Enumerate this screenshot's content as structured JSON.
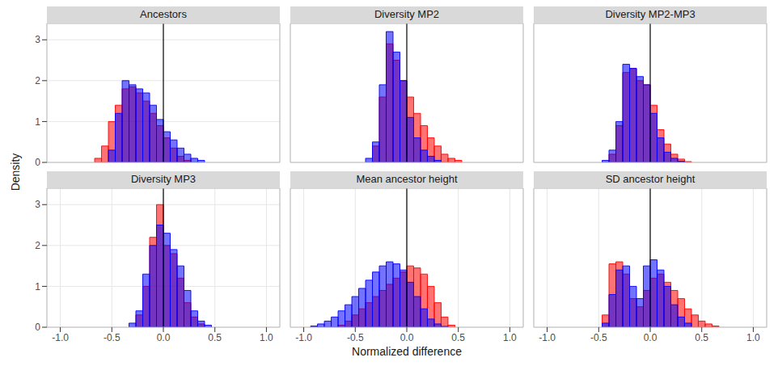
{
  "xlabel": "Normalized difference",
  "ylabel": "Density",
  "chart_data": [
    {
      "type": "histogram",
      "title": "Ancestors",
      "tick_labels": "y",
      "grid": true,
      "vline": 0,
      "xlim": [
        -1.13,
        1.13
      ],
      "ylim": [
        0,
        3.4
      ],
      "xticks": [
        {
          "value": -1,
          "label": "-1.0"
        },
        -0.5,
        {
          "value": 0,
          "label": "0.0"
        },
        0.5,
        {
          "value": 1,
          "label": "1.0"
        }
      ],
      "yticks": [
        0,
        1,
        2,
        3
      ],
      "bins": [
        -1,
        -0.9333,
        -0.8667,
        -0.8,
        -0.7333,
        -0.6667,
        -0.6,
        -0.5333,
        -0.4667,
        -0.4,
        -0.3333,
        -0.2667,
        -0.2,
        -0.1333,
        -0.0667,
        0,
        0.0667,
        0.1333,
        0.2,
        0.2667,
        0.3333,
        0.4,
        0.4667,
        0.5333,
        0.6,
        0.6667,
        0.7333,
        0.8,
        0.8667,
        0.9333,
        1
      ],
      "series": [
        {
          "color": "#ff0000",
          "values": [
            0,
            0,
            0,
            0,
            0,
            0.1,
            0.4,
            1.0,
            1.4,
            1.8,
            1.85,
            1.7,
            1.5,
            1.2,
            0.9,
            0.6,
            0.35,
            0.15,
            0.05,
            0,
            0,
            0,
            0,
            0,
            0,
            0,
            0,
            0,
            0,
            0
          ]
        },
        {
          "color": "#0000ff",
          "values": [
            0,
            0,
            0,
            0,
            0,
            0,
            0,
            0.3,
            1.2,
            2.0,
            1.9,
            1.8,
            1.7,
            1.4,
            1.05,
            0.75,
            0.55,
            0.35,
            0.2,
            0.1,
            0.05,
            0,
            0,
            0,
            0,
            0,
            0,
            0,
            0,
            0
          ]
        }
      ]
    },
    {
      "type": "histogram",
      "title": "Diversity MP2",
      "tick_labels": false,
      "grid": true,
      "vline": 0,
      "xlim": [
        -1.13,
        1.13
      ],
      "ylim": [
        0,
        3.4
      ],
      "xticks": [
        {
          "value": -1,
          "label": "-1.0"
        },
        -0.5,
        {
          "value": 0,
          "label": "0.0"
        },
        0.5,
        {
          "value": 1,
          "label": "1.0"
        }
      ],
      "yticks": [
        0,
        1,
        2,
        3
      ],
      "bins": [
        -1,
        -0.9333,
        -0.8667,
        -0.8,
        -0.7333,
        -0.6667,
        -0.6,
        -0.5333,
        -0.4667,
        -0.4,
        -0.3333,
        -0.2667,
        -0.2,
        -0.1333,
        -0.0667,
        0,
        0.0667,
        0.1333,
        0.2,
        0.2667,
        0.3333,
        0.4,
        0.4667,
        0.5333,
        0.6,
        0.6667,
        0.7333,
        0.8,
        0.8667,
        0.9333,
        1
      ],
      "series": [
        {
          "color": "#ff0000",
          "values": [
            0,
            0,
            0,
            0,
            0,
            0,
            0,
            0,
            0,
            0,
            0.4,
            1.6,
            2.9,
            2.5,
            2.0,
            1.6,
            1.2,
            0.9,
            0.6,
            0.4,
            0.2,
            0.1,
            0.05,
            0,
            0,
            0,
            0,
            0,
            0,
            0
          ]
        },
        {
          "color": "#0000ff",
          "values": [
            0,
            0,
            0,
            0,
            0,
            0,
            0,
            0,
            0,
            0.1,
            0.5,
            1.9,
            3.2,
            2.7,
            2.0,
            1.1,
            0.6,
            0.3,
            0.15,
            0.05,
            0,
            0,
            0,
            0,
            0,
            0,
            0,
            0,
            0,
            0
          ]
        }
      ]
    },
    {
      "type": "histogram",
      "title": "Diversity MP2-MP3",
      "tick_labels": false,
      "grid": true,
      "vline": 0,
      "xlim": [
        -1.13,
        1.13
      ],
      "ylim": [
        0,
        3.4
      ],
      "xticks": [
        {
          "value": -1,
          "label": "-1.0"
        },
        -0.5,
        {
          "value": 0,
          "label": "0.0"
        },
        0.5,
        {
          "value": 1,
          "label": "1.0"
        }
      ],
      "yticks": [
        0,
        1,
        2,
        3
      ],
      "bins": [
        -1,
        -0.9333,
        -0.8667,
        -0.8,
        -0.7333,
        -0.6667,
        -0.6,
        -0.5333,
        -0.4667,
        -0.4,
        -0.3333,
        -0.2667,
        -0.2,
        -0.1333,
        -0.0667,
        0,
        0.0667,
        0.1333,
        0.2,
        0.2667,
        0.3333,
        0.4,
        0.4667,
        0.5333,
        0.6,
        0.6667,
        0.7333,
        0.8,
        0.8667,
        0.9333,
        1
      ],
      "series": [
        {
          "color": "#ff0000",
          "values": [
            0,
            0,
            0,
            0,
            0,
            0,
            0,
            0,
            0,
            0.2,
            0.9,
            2.2,
            2.3,
            2.0,
            1.9,
            1.4,
            0.8,
            0.45,
            0.2,
            0.08,
            0.02,
            0,
            0,
            0,
            0,
            0,
            0,
            0,
            0,
            0
          ]
        },
        {
          "color": "#0000ff",
          "values": [
            0,
            0,
            0,
            0,
            0,
            0,
            0,
            0,
            0.05,
            0.3,
            1.0,
            2.4,
            2.3,
            2.1,
            1.9,
            1.2,
            0.6,
            0.25,
            0.1,
            0.03,
            0,
            0,
            0,
            0,
            0,
            0,
            0,
            0,
            0,
            0
          ]
        }
      ]
    },
    {
      "type": "histogram",
      "title": "Diversity MP3",
      "grid": true,
      "vline": 0,
      "xlim": [
        -1.13,
        1.13
      ],
      "ylim": [
        0,
        3.4
      ],
      "xticks": [
        {
          "value": -1,
          "label": "-1.0"
        },
        -0.5,
        {
          "value": 0,
          "label": "0.0"
        },
        0.5,
        {
          "value": 1,
          "label": "1.0"
        }
      ],
      "yticks": [
        0,
        1,
        2,
        3
      ],
      "bins": [
        -1,
        -0.9333,
        -0.8667,
        -0.8,
        -0.7333,
        -0.6667,
        -0.6,
        -0.5333,
        -0.4667,
        -0.4,
        -0.3333,
        -0.2667,
        -0.2,
        -0.1333,
        -0.0667,
        0,
        0.0667,
        0.1333,
        0.2,
        0.2667,
        0.3333,
        0.4,
        0.4667,
        0.5333,
        0.6,
        0.6667,
        0.7333,
        0.8,
        0.8667,
        0.9333,
        1
      ],
      "series": [
        {
          "color": "#ff0000",
          "values": [
            0,
            0,
            0,
            0,
            0,
            0,
            0,
            0,
            0,
            0,
            0,
            0.3,
            1.0,
            2.2,
            3.0,
            2.0,
            1.8,
            1.2,
            0.6,
            0.25,
            0.08,
            0,
            0,
            0,
            0,
            0,
            0,
            0,
            0,
            0
          ]
        },
        {
          "color": "#0000ff",
          "values": [
            0,
            0,
            0,
            0,
            0,
            0,
            0,
            0,
            0,
            0,
            0.1,
            0.4,
            1.3,
            2.0,
            2.5,
            2.3,
            1.9,
            1.5,
            0.9,
            0.4,
            0.15,
            0.05,
            0,
            0,
            0,
            0,
            0,
            0,
            0,
            0
          ]
        }
      ]
    },
    {
      "type": "histogram",
      "title": "Mean ancestor height",
      "tick_labels": "x",
      "grid": true,
      "vline": 0,
      "xlim": [
        -1.13,
        1.13
      ],
      "ylim": [
        0,
        3.4
      ],
      "xticks": [
        {
          "value": -1,
          "label": "-1.0"
        },
        -0.5,
        {
          "value": 0,
          "label": "0.0"
        },
        0.5,
        {
          "value": 1,
          "label": "1.0"
        }
      ],
      "yticks": [
        0,
        1,
        2,
        3
      ],
      "bins": [
        -1,
        -0.9333,
        -0.8667,
        -0.8,
        -0.7333,
        -0.6667,
        -0.6,
        -0.5333,
        -0.4667,
        -0.4,
        -0.3333,
        -0.2667,
        -0.2,
        -0.1333,
        -0.0667,
        0,
        0.0667,
        0.1333,
        0.2,
        0.2667,
        0.3333,
        0.4,
        0.4667,
        0.5333,
        0.6,
        0.6667,
        0.7333,
        0.8,
        0.8667,
        0.9333,
        1
      ],
      "series": [
        {
          "color": "#ff0000",
          "values": [
            0,
            0,
            0,
            0,
            0,
            0.05,
            0.15,
            0.3,
            0.45,
            0.6,
            0.75,
            0.9,
            1.05,
            1.2,
            1.35,
            1.5,
            1.45,
            1.3,
            1.0,
            0.6,
            0.25,
            0.05,
            0,
            0,
            0,
            0,
            0,
            0,
            0,
            0
          ]
        },
        {
          "color": "#0000ff",
          "values": [
            0,
            0.03,
            0.08,
            0.15,
            0.25,
            0.4,
            0.55,
            0.75,
            0.95,
            1.15,
            1.35,
            1.5,
            1.6,
            1.55,
            1.4,
            1.1,
            0.75,
            0.45,
            0.2,
            0.08,
            0.02,
            0,
            0,
            0,
            0,
            0,
            0,
            0,
            0,
            0
          ]
        }
      ]
    },
    {
      "type": "histogram",
      "title": "SD ancestor height",
      "tick_labels": "x",
      "grid": true,
      "vline": 0,
      "xlim": [
        -1.13,
        1.13
      ],
      "ylim": [
        0,
        3.4
      ],
      "xticks": [
        {
          "value": -1,
          "label": "-1.0"
        },
        -0.5,
        {
          "value": 0,
          "label": "0.0"
        },
        0.5,
        {
          "value": 1,
          "label": "1.0"
        }
      ],
      "yticks": [
        0,
        1,
        2,
        3
      ],
      "bins": [
        -1,
        -0.9333,
        -0.8667,
        -0.8,
        -0.7333,
        -0.6667,
        -0.6,
        -0.5333,
        -0.4667,
        -0.4,
        -0.3333,
        -0.2667,
        -0.2,
        -0.1333,
        -0.0667,
        0,
        0.0667,
        0.1333,
        0.2,
        0.2667,
        0.3333,
        0.4,
        0.4667,
        0.5333,
        0.6,
        0.6667,
        0.7333,
        0.8,
        0.8667,
        0.9333,
        1
      ],
      "series": [
        {
          "color": "#ff0000",
          "values": [
            0,
            0,
            0,
            0,
            0,
            0,
            0,
            0,
            0.3,
            1.55,
            1.6,
            1.3,
            0.7,
            0.5,
            0.9,
            1.2,
            1.3,
            1.1,
            0.9,
            0.7,
            0.45,
            0.3,
            0.15,
            0.08,
            0.03,
            0,
            0,
            0,
            0,
            0
          ]
        },
        {
          "color": "#0000ff",
          "values": [
            0,
            0,
            0,
            0,
            0,
            0,
            0,
            0,
            0.1,
            0.8,
            1.4,
            1.5,
            1.0,
            0.7,
            1.5,
            1.65,
            1.4,
            1.0,
            0.55,
            0.25,
            0.1,
            0,
            0,
            0,
            0,
            0,
            0,
            0,
            0,
            0
          ]
        }
      ]
    }
  ]
}
